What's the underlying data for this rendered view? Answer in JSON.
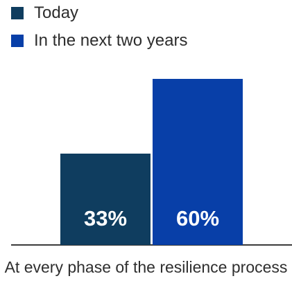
{
  "chart_data": {
    "type": "bar",
    "categories": [
      "At every phase of the resilience process"
    ],
    "series": [
      {
        "name": "Today",
        "values": [
          33
        ],
        "label": "33%",
        "color": "#0f3d5f"
      },
      {
        "name": "In the next two years",
        "values": [
          60
        ],
        "label": "60%",
        "color": "#083fa8"
      }
    ],
    "category_label": "At every phase of the resilience process",
    "xlabel": "",
    "ylabel": "",
    "unit": "%",
    "ylim": [
      0,
      60
    ],
    "grid": false,
    "legend_position": "top-left",
    "colors": {
      "axis": "#3a3a3a",
      "text": "#2f2f2f",
      "bar_label": "#ffffff"
    }
  }
}
